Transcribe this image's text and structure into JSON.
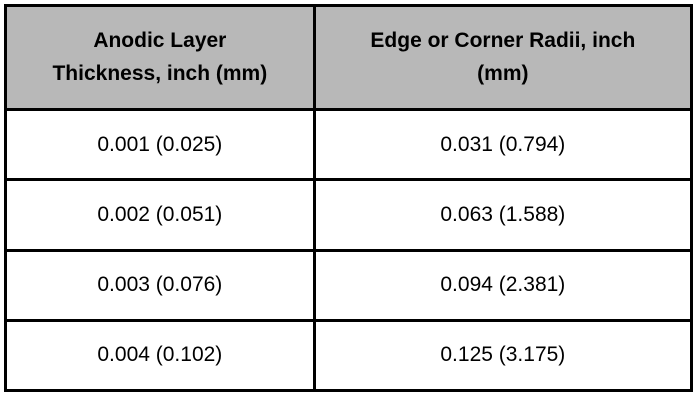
{
  "table": {
    "headers": [
      "Anodic Layer Thickness, inch (mm)",
      "Edge or Corner Radii, inch (mm)"
    ],
    "rows": [
      [
        "0.001 (0.025)",
        "0.031 (0.794)"
      ],
      [
        "0.002 (0.051)",
        "0.063 (1.588)"
      ],
      [
        "0.003 (0.076)",
        "0.094 (2.381)"
      ],
      [
        "0.004 (0.102)",
        "0.125 (3.175)"
      ]
    ]
  },
  "colors": {
    "header_bg": "#b8b8b8",
    "border": "#000000",
    "cell_bg": "#ffffff",
    "text": "#000000"
  }
}
